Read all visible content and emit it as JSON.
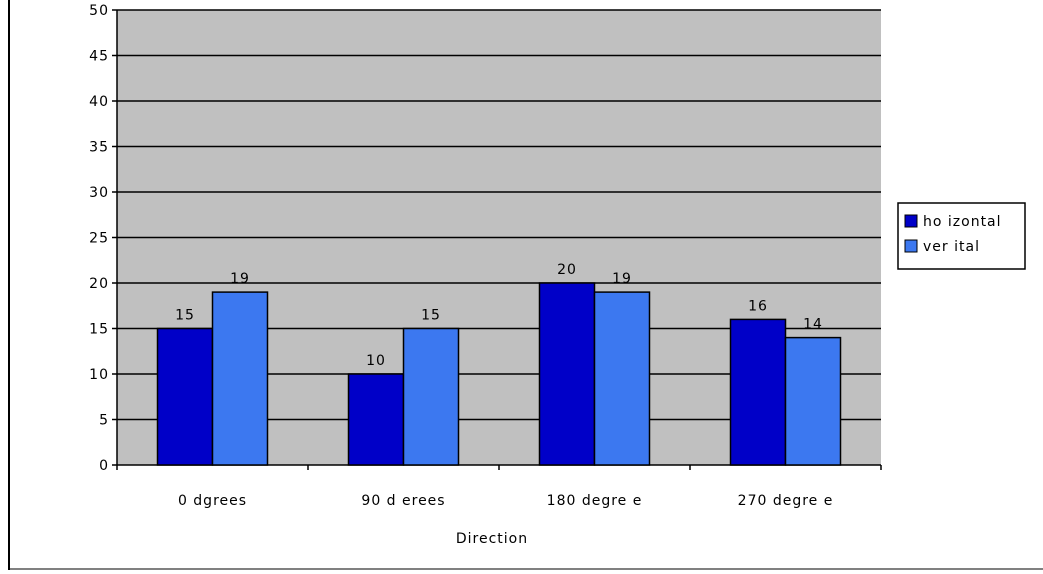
{
  "chart_data": {
    "type": "bar",
    "xlabel": "Direction",
    "ylabel": "",
    "ylim": [
      0,
      50
    ],
    "yticks": [
      0,
      5,
      10,
      15,
      20,
      25,
      30,
      35,
      40,
      45,
      50
    ],
    "categories": [
      "0  dgrees",
      "90 d erees",
      "180 degre e",
      "270 degre e"
    ],
    "series": [
      {
        "name": "ho izontal",
        "color": "#0000c8",
        "values": [
          15,
          10,
          20,
          16
        ]
      },
      {
        "name": "ver ital",
        "color": "#3c78f0",
        "values": [
          19,
          15,
          19,
          14
        ]
      }
    ],
    "grid": true,
    "plot_background": "#c0c0c0",
    "legend_position": "right"
  }
}
